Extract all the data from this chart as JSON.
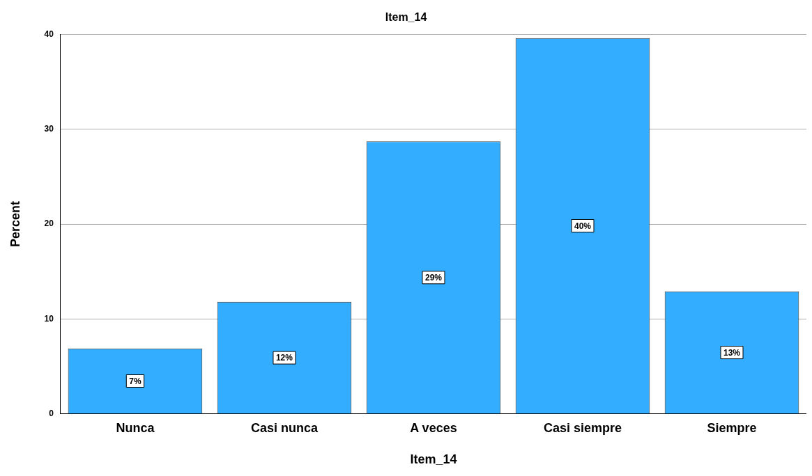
{
  "chart_data": {
    "type": "bar",
    "title": "Item_14",
    "xlabel": "Item_14",
    "ylabel": "Percent",
    "categories": [
      "Nunca",
      "Casi nunca",
      "A veces",
      "Casi siempre",
      "Siempre"
    ],
    "values": [
      6.9,
      11.8,
      28.7,
      39.6,
      12.9
    ],
    "value_labels": [
      "7%",
      "12%",
      "29%",
      "40%",
      "13%"
    ],
    "color": "#33adff",
    "ylim": [
      0,
      40
    ],
    "yticks": [
      0,
      10,
      20,
      30,
      40
    ],
    "grid": "y",
    "legend": false
  }
}
